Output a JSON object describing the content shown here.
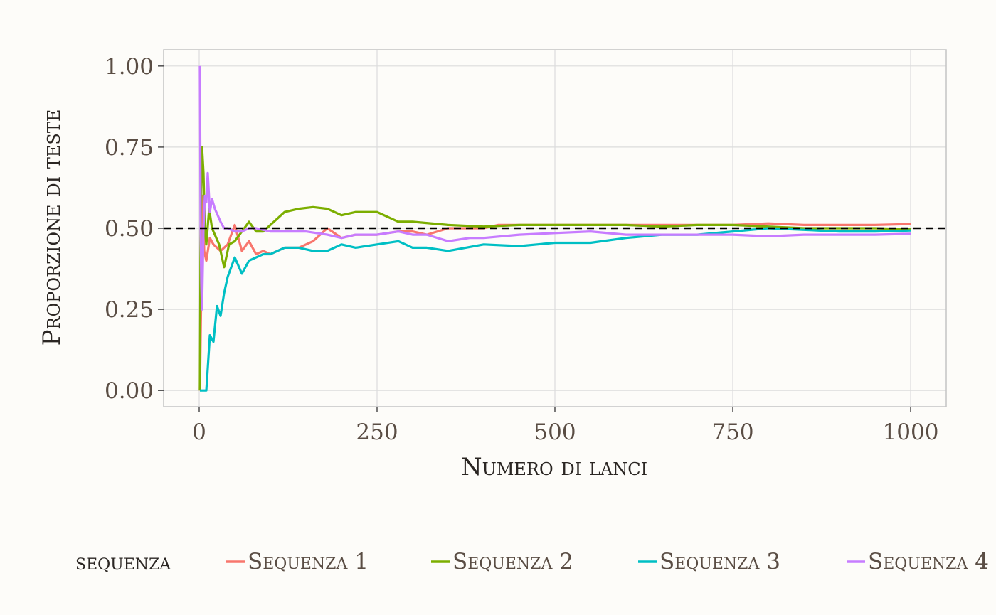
{
  "chart_data": {
    "type": "line",
    "title": "",
    "xlabel": "Numero di lanci",
    "ylabel": "Proporzione di teste",
    "xlim": [
      -50,
      1050
    ],
    "ylim": [
      -0.05,
      1.05
    ],
    "x_ticks": [
      0,
      250,
      500,
      750,
      1000
    ],
    "x_tick_labels": [
      "0",
      "250",
      "500",
      "750",
      "1000"
    ],
    "y_ticks": [
      0,
      0.25,
      0.5,
      0.75,
      1
    ],
    "y_tick_labels": [
      "0.00",
      "0.25",
      "0.50",
      "0.75",
      "1.00"
    ],
    "reference_line": {
      "y": 0.5,
      "style": "dashed",
      "color": "#000000"
    },
    "grid": true,
    "legend": {
      "title": "sequenza",
      "position": "bottom"
    },
    "series": [
      {
        "name": "Sequenza 1",
        "color": "#F8766D",
        "points": [
          [
            1,
            0
          ],
          [
            3,
            0.33
          ],
          [
            5,
            0.6
          ],
          [
            7,
            0.43
          ],
          [
            10,
            0.4
          ],
          [
            15,
            0.47
          ],
          [
            20,
            0.45
          ],
          [
            30,
            0.43
          ],
          [
            40,
            0.45
          ],
          [
            50,
            0.51
          ],
          [
            60,
            0.43
          ],
          [
            70,
            0.46
          ],
          [
            80,
            0.42
          ],
          [
            90,
            0.43
          ],
          [
            100,
            0.42
          ],
          [
            120,
            0.44
          ],
          [
            140,
            0.44
          ],
          [
            160,
            0.46
          ],
          [
            180,
            0.5
          ],
          [
            200,
            0.47
          ],
          [
            220,
            0.48
          ],
          [
            250,
            0.48
          ],
          [
            280,
            0.49
          ],
          [
            300,
            0.49
          ],
          [
            320,
            0.48
          ],
          [
            350,
            0.5
          ],
          [
            380,
            0.5
          ],
          [
            400,
            0.5
          ],
          [
            420,
            0.51
          ],
          [
            450,
            0.51
          ],
          [
            500,
            0.51
          ],
          [
            550,
            0.51
          ],
          [
            600,
            0.51
          ],
          [
            650,
            0.51
          ],
          [
            700,
            0.51
          ],
          [
            750,
            0.51
          ],
          [
            800,
            0.515
          ],
          [
            850,
            0.51
          ],
          [
            900,
            0.51
          ],
          [
            950,
            0.51
          ],
          [
            1000,
            0.513
          ]
        ]
      },
      {
        "name": "Sequenza 2",
        "color": "#7CAE00",
        "points": [
          [
            1,
            0
          ],
          [
            2,
            0.5
          ],
          [
            4,
            0.75
          ],
          [
            6,
            0.67
          ],
          [
            8,
            0.5
          ],
          [
            10,
            0.45
          ],
          [
            14,
            0.56
          ],
          [
            18,
            0.5
          ],
          [
            22,
            0.48
          ],
          [
            28,
            0.45
          ],
          [
            35,
            0.38
          ],
          [
            42,
            0.45
          ],
          [
            50,
            0.46
          ],
          [
            60,
            0.49
          ],
          [
            70,
            0.52
          ],
          [
            80,
            0.49
          ],
          [
            90,
            0.49
          ],
          [
            100,
            0.51
          ],
          [
            120,
            0.55
          ],
          [
            140,
            0.56
          ],
          [
            160,
            0.565
          ],
          [
            180,
            0.56
          ],
          [
            200,
            0.54
          ],
          [
            220,
            0.55
          ],
          [
            250,
            0.55
          ],
          [
            280,
            0.52
          ],
          [
            300,
            0.52
          ],
          [
            350,
            0.51
          ],
          [
            400,
            0.505
          ],
          [
            450,
            0.51
          ],
          [
            500,
            0.51
          ],
          [
            550,
            0.51
          ],
          [
            600,
            0.51
          ],
          [
            650,
            0.505
          ],
          [
            700,
            0.51
          ],
          [
            750,
            0.51
          ],
          [
            800,
            0.505
          ],
          [
            850,
            0.5
          ],
          [
            900,
            0.5
          ],
          [
            950,
            0.5
          ],
          [
            1000,
            0.497
          ]
        ]
      },
      {
        "name": "Sequenza 3",
        "color": "#00BFC4",
        "points": [
          [
            1,
            0
          ],
          [
            5,
            0
          ],
          [
            10,
            0
          ],
          [
            15,
            0.17
          ],
          [
            20,
            0.15
          ],
          [
            25,
            0.26
          ],
          [
            30,
            0.23
          ],
          [
            35,
            0.3
          ],
          [
            40,
            0.35
          ],
          [
            45,
            0.38
          ],
          [
            50,
            0.41
          ],
          [
            60,
            0.36
          ],
          [
            70,
            0.4
          ],
          [
            80,
            0.41
          ],
          [
            90,
            0.42
          ],
          [
            100,
            0.42
          ],
          [
            120,
            0.44
          ],
          [
            140,
            0.44
          ],
          [
            160,
            0.43
          ],
          [
            180,
            0.43
          ],
          [
            200,
            0.45
          ],
          [
            220,
            0.44
          ],
          [
            250,
            0.45
          ],
          [
            280,
            0.46
          ],
          [
            300,
            0.44
          ],
          [
            320,
            0.44
          ],
          [
            350,
            0.43
          ],
          [
            400,
            0.45
          ],
          [
            450,
            0.445
          ],
          [
            500,
            0.455
          ],
          [
            550,
            0.455
          ],
          [
            600,
            0.47
          ],
          [
            650,
            0.48
          ],
          [
            700,
            0.48
          ],
          [
            750,
            0.49
          ],
          [
            800,
            0.5
          ],
          [
            850,
            0.495
          ],
          [
            900,
            0.49
          ],
          [
            950,
            0.49
          ],
          [
            1000,
            0.493
          ]
        ]
      },
      {
        "name": "Sequenza 4",
        "color": "#C77CFF",
        "points": [
          [
            1,
            1
          ],
          [
            2,
            0.5
          ],
          [
            3,
            0.33
          ],
          [
            4,
            0.25
          ],
          [
            6,
            0.5
          ],
          [
            8,
            0.6
          ],
          [
            10,
            0.58
          ],
          [
            12,
            0.67
          ],
          [
            15,
            0.55
          ],
          [
            18,
            0.59
          ],
          [
            22,
            0.56
          ],
          [
            26,
            0.54
          ],
          [
            30,
            0.52
          ],
          [
            35,
            0.5
          ],
          [
            40,
            0.5
          ],
          [
            50,
            0.49
          ],
          [
            60,
            0.49
          ],
          [
            70,
            0.5
          ],
          [
            80,
            0.5
          ],
          [
            100,
            0.49
          ],
          [
            120,
            0.49
          ],
          [
            150,
            0.49
          ],
          [
            180,
            0.48
          ],
          [
            200,
            0.47
          ],
          [
            220,
            0.48
          ],
          [
            250,
            0.48
          ],
          [
            280,
            0.49
          ],
          [
            300,
            0.48
          ],
          [
            320,
            0.48
          ],
          [
            350,
            0.46
          ],
          [
            380,
            0.47
          ],
          [
            400,
            0.47
          ],
          [
            450,
            0.48
          ],
          [
            500,
            0.485
          ],
          [
            550,
            0.49
          ],
          [
            600,
            0.48
          ],
          [
            650,
            0.48
          ],
          [
            700,
            0.48
          ],
          [
            750,
            0.48
          ],
          [
            800,
            0.475
          ],
          [
            850,
            0.48
          ],
          [
            900,
            0.48
          ],
          [
            950,
            0.48
          ],
          [
            1000,
            0.483
          ]
        ]
      }
    ]
  }
}
